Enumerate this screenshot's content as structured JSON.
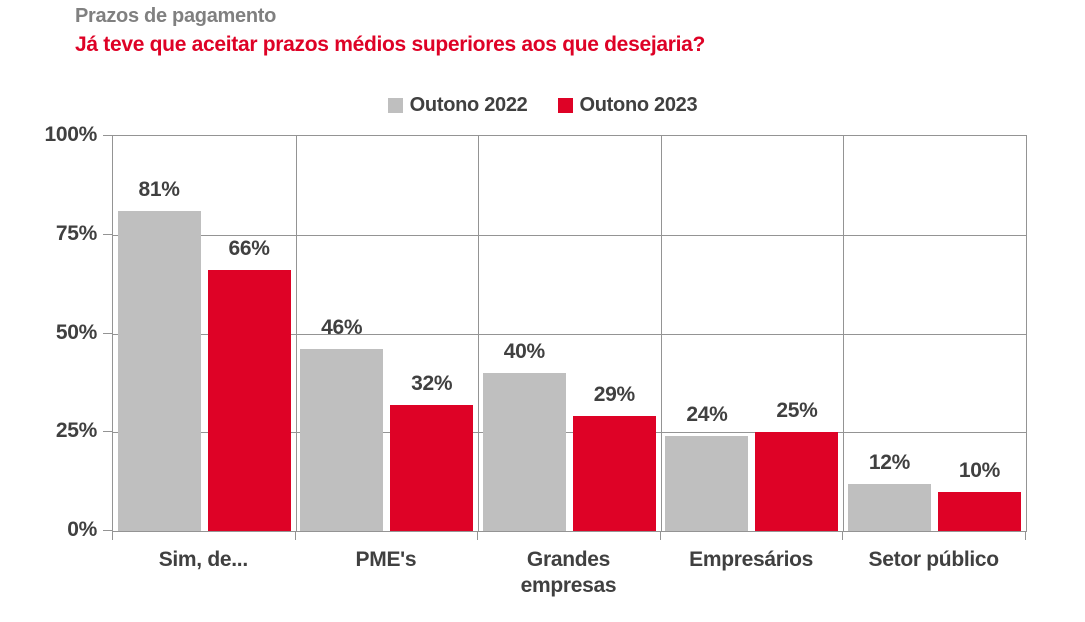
{
  "header": {
    "title": "Prazos de pagamento",
    "subtitle": "Já teve que aceitar prazos médios superiores aos que desejaria?"
  },
  "legend": [
    {
      "label": "Outono 2022",
      "color": "#bfbfbf"
    },
    {
      "label": "Outono 2023",
      "color": "#de0226"
    }
  ],
  "chart_data": {
    "type": "bar",
    "title": "Prazos de pagamento",
    "subtitle": "Já teve que aceitar prazos médios superiores aos que desejaria?",
    "categories": [
      "Sim, de...",
      "PME's",
      "Grandes empresas",
      "Empresários",
      "Setor público"
    ],
    "series": [
      {
        "name": "Outono 2022",
        "color": "#bfbfbf",
        "values": [
          81,
          46,
          40,
          24,
          12
        ]
      },
      {
        "name": "Outono 2023",
        "color": "#de0226",
        "values": [
          66,
          32,
          29,
          25,
          10
        ]
      }
    ],
    "value_suffix": "%",
    "xlabel": "",
    "ylabel": "",
    "ylim": [
      0,
      100
    ],
    "yticks": [
      0,
      25,
      50,
      75,
      100
    ],
    "ytick_labels": [
      "0%",
      "25%",
      "50%",
      "75%",
      "100%"
    ],
    "grid": true,
    "legend_position": "top-center"
  },
  "colors": {
    "title": "#808080",
    "subtitle": "#de0226",
    "text": "#404040",
    "grid": "#949494",
    "series_2022": "#bfbfbf",
    "series_2023": "#de0226"
  }
}
